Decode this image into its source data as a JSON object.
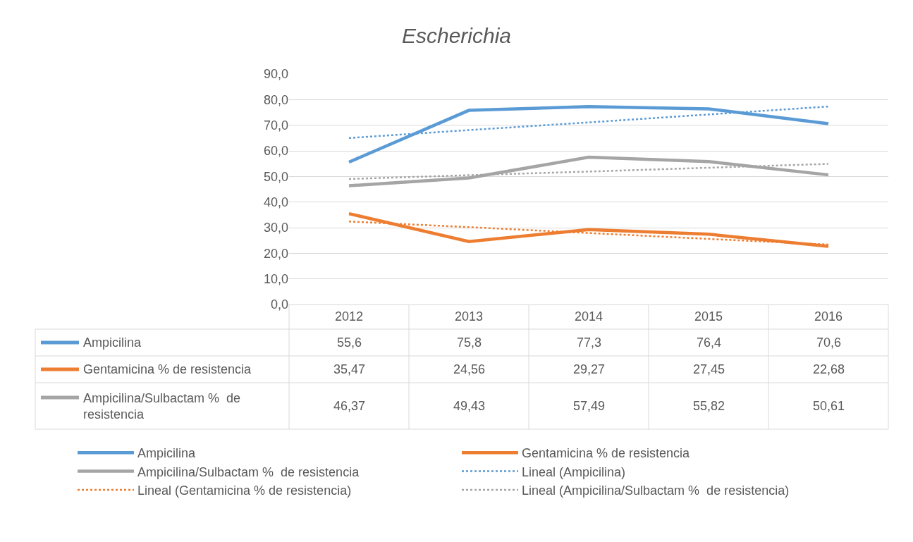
{
  "chart_data": {
    "type": "line",
    "title": "Escherichia",
    "categories": [
      "2012",
      "2013",
      "2014",
      "2015",
      "2016"
    ],
    "ylim": [
      0,
      90
    ],
    "yticks": [
      {
        "value": 0,
        "label": "0,0"
      },
      {
        "value": 10,
        "label": "10,0"
      },
      {
        "value": 20,
        "label": "20,0"
      },
      {
        "value": 30,
        "label": "30,0"
      },
      {
        "value": 40,
        "label": "40,0"
      },
      {
        "value": 50,
        "label": "50,0"
      },
      {
        "value": 60,
        "label": "60,0"
      },
      {
        "value": 70,
        "label": "70,0"
      },
      {
        "value": 80,
        "label": "80,0"
      },
      {
        "value": 90,
        "label": "90,0"
      }
    ],
    "grid": "y",
    "legend": "bottom",
    "marker": "none",
    "series": [
      {
        "name": "Ampicilina",
        "color": "#5b9bd5",
        "line_style": "solid",
        "values": [
          55.6,
          75.8,
          77.3,
          76.4,
          70.6
        ],
        "value_labels": [
          "55,6",
          "75,8",
          "77,3",
          "76,4",
          "70,6"
        ]
      },
      {
        "name": "Gentamicina % de resistencia",
        "color": "#ed7d31",
        "line_style": "solid",
        "values": [
          35.47,
          24.56,
          29.27,
          27.45,
          22.68
        ],
        "value_labels": [
          "35,47",
          "24,56",
          "29,27",
          "27,45",
          "22,68"
        ]
      },
      {
        "name": "Ampicilina/Sulbactam %  de resistencia",
        "color": "#a5a5a5",
        "line_style": "solid",
        "values": [
          46.37,
          49.43,
          57.49,
          55.82,
          50.61
        ],
        "value_labels": [
          "46,37",
          "49,43",
          "57,49",
          "55,82",
          "50,61"
        ]
      },
      {
        "name": "Lineal (Ampicilina)",
        "color": "#5b9bd5",
        "line_style": "dotted",
        "values": [
          65.0,
          68.1,
          71.1,
          74.2,
          77.3
        ]
      },
      {
        "name": "Lineal (Gentamicina % de resistencia)",
        "color": "#ed7d31",
        "line_style": "dotted",
        "values": [
          32.4,
          30.2,
          27.9,
          25.6,
          23.4
        ]
      },
      {
        "name": "Lineal (Ampicilina/Sulbactam %  de resistencia)",
        "color": "#a5a5a5",
        "line_style": "dotted",
        "values": [
          49.0,
          50.5,
          51.9,
          53.4,
          54.9
        ]
      }
    ]
  }
}
